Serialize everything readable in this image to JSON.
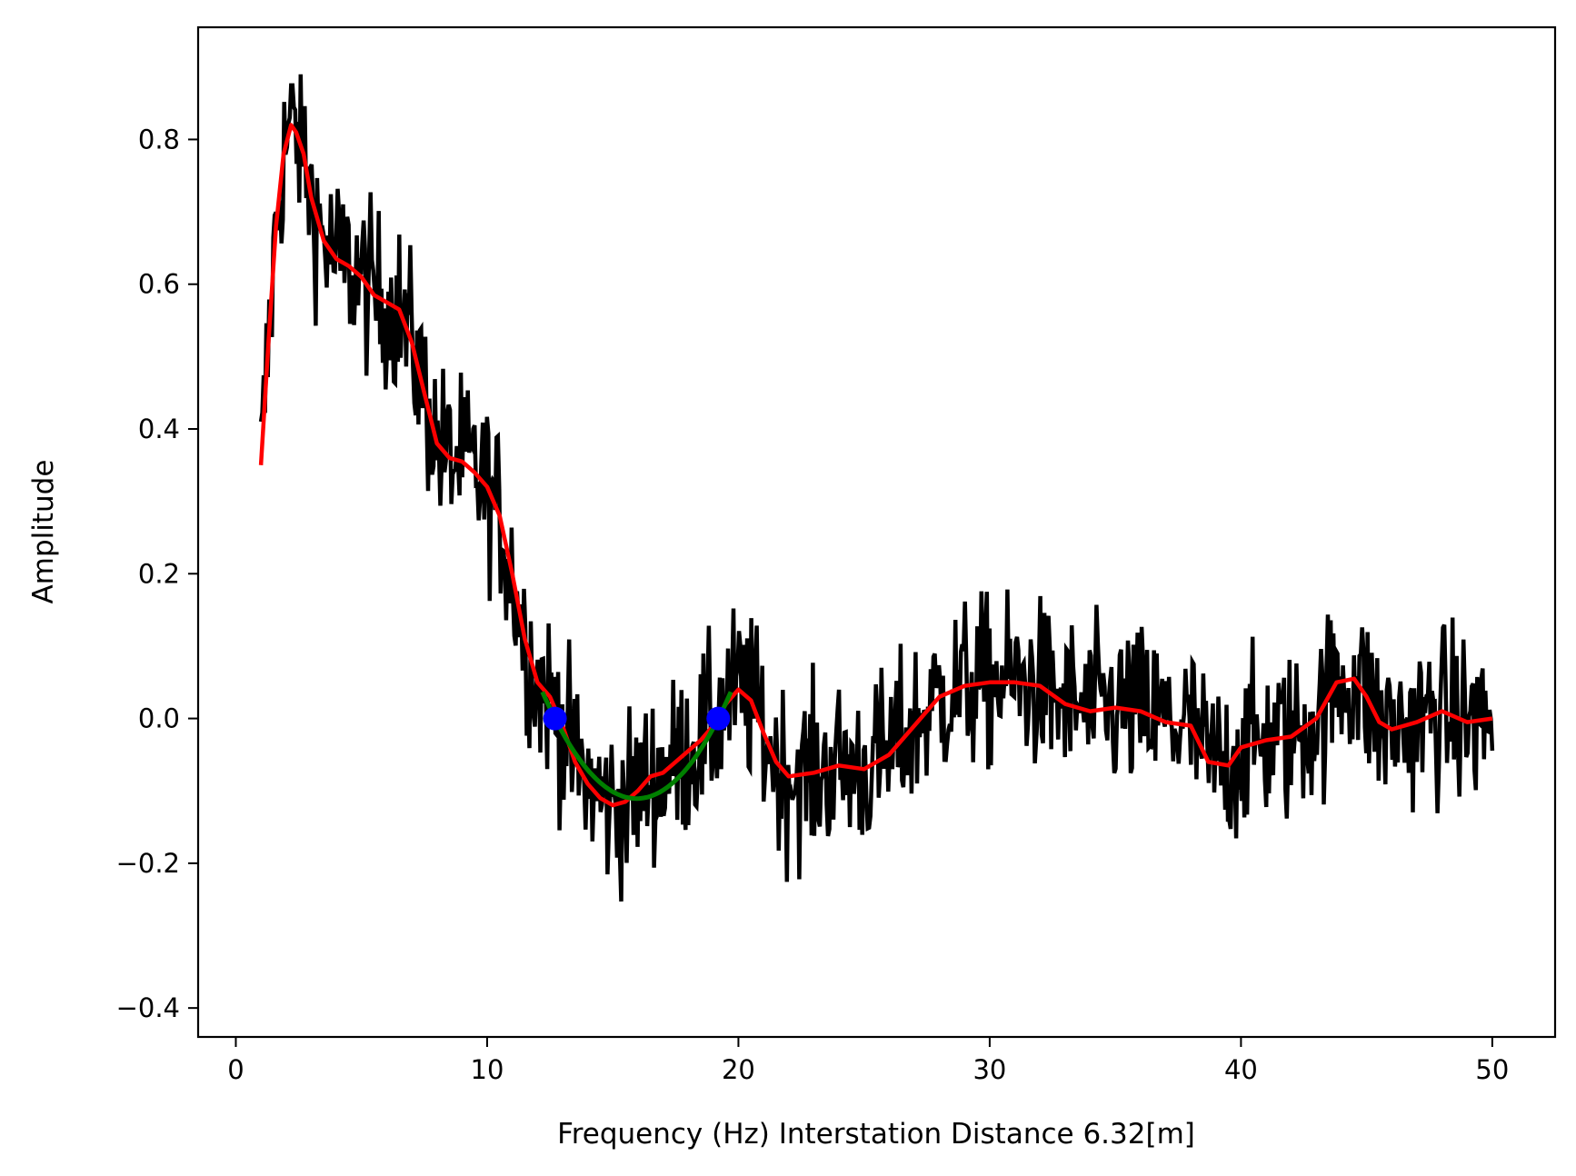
{
  "chart_data": {
    "type": "line",
    "title": "",
    "xlabel": "Frequency (Hz)  Interstation Distance 6.32[m]",
    "ylabel": "Amplitude",
    "xlim": [
      -1.5,
      52.5
    ],
    "ylim": [
      -0.44,
      0.955
    ],
    "grid": false,
    "legend": "none",
    "x_ticks": [
      0,
      10,
      20,
      30,
      40,
      50
    ],
    "y_ticks": [
      -0.4,
      -0.2,
      0.0,
      0.2,
      0.4,
      0.6,
      0.8
    ],
    "series": [
      {
        "role": "raw-noisy",
        "color": "#000000",
        "x_range": [
          1.0,
          50.0
        ],
        "n_points": 900,
        "noise_std": 0.06,
        "envelope": {
          "max": 0.89,
          "min": -0.38
        }
      },
      {
        "role": "smoothed",
        "color": "#ff0000",
        "x": [
          1.0,
          1.3,
          1.6,
          1.9,
          2.2,
          2.4,
          2.7,
          3.0,
          3.5,
          4.0,
          4.5,
          5.0,
          5.5,
          6.0,
          6.5,
          7.0,
          7.5,
          8.0,
          8.5,
          9.0,
          9.5,
          10.0,
          10.5,
          11.0,
          11.5,
          12.0,
          12.5,
          13.0,
          13.5,
          14.0,
          14.5,
          15.0,
          15.5,
          16.0,
          16.5,
          17.0,
          17.5,
          18.0,
          18.5,
          19.0,
          19.5,
          20.0,
          20.5,
          21.0,
          21.5,
          22.0,
          23.0,
          24.0,
          25.0,
          26.0,
          27.0,
          28.0,
          29.0,
          30.0,
          31.0,
          32.0,
          33.0,
          34.0,
          35.0,
          36.0,
          37.0,
          38.0,
          38.7,
          39.5,
          40.0,
          41.0,
          42.0,
          43.0,
          43.8,
          44.5,
          45.0,
          45.5,
          46.0,
          47.0,
          48.0,
          49.0,
          50.0
        ],
        "y": [
          0.35,
          0.52,
          0.68,
          0.78,
          0.82,
          0.81,
          0.78,
          0.72,
          0.66,
          0.635,
          0.625,
          0.61,
          0.585,
          0.575,
          0.565,
          0.52,
          0.45,
          0.38,
          0.36,
          0.355,
          0.34,
          0.32,
          0.28,
          0.2,
          0.11,
          0.05,
          0.03,
          -0.01,
          -0.06,
          -0.09,
          -0.11,
          -0.12,
          -0.115,
          -0.1,
          -0.08,
          -0.075,
          -0.06,
          -0.045,
          -0.03,
          -0.01,
          0.02,
          0.04,
          0.025,
          -0.02,
          -0.06,
          -0.08,
          -0.075,
          -0.065,
          -0.07,
          -0.05,
          -0.01,
          0.03,
          0.045,
          0.05,
          0.05,
          0.045,
          0.02,
          0.01,
          0.015,
          0.01,
          -0.005,
          -0.01,
          -0.06,
          -0.065,
          -0.04,
          -0.03,
          -0.025,
          0.0,
          0.05,
          0.055,
          0.03,
          -0.005,
          -0.015,
          -0.005,
          0.01,
          -0.005,
          0.0
        ]
      },
      {
        "role": "fit",
        "color": "#008000",
        "x_range": [
          12.2,
          19.7
        ],
        "vertex": [
          16.2,
          -0.11
        ]
      },
      {
        "role": "zero-crossings",
        "color": "#0000ff",
        "x": [
          12.7,
          19.2
        ],
        "y": [
          0.0,
          0.0
        ]
      }
    ]
  }
}
